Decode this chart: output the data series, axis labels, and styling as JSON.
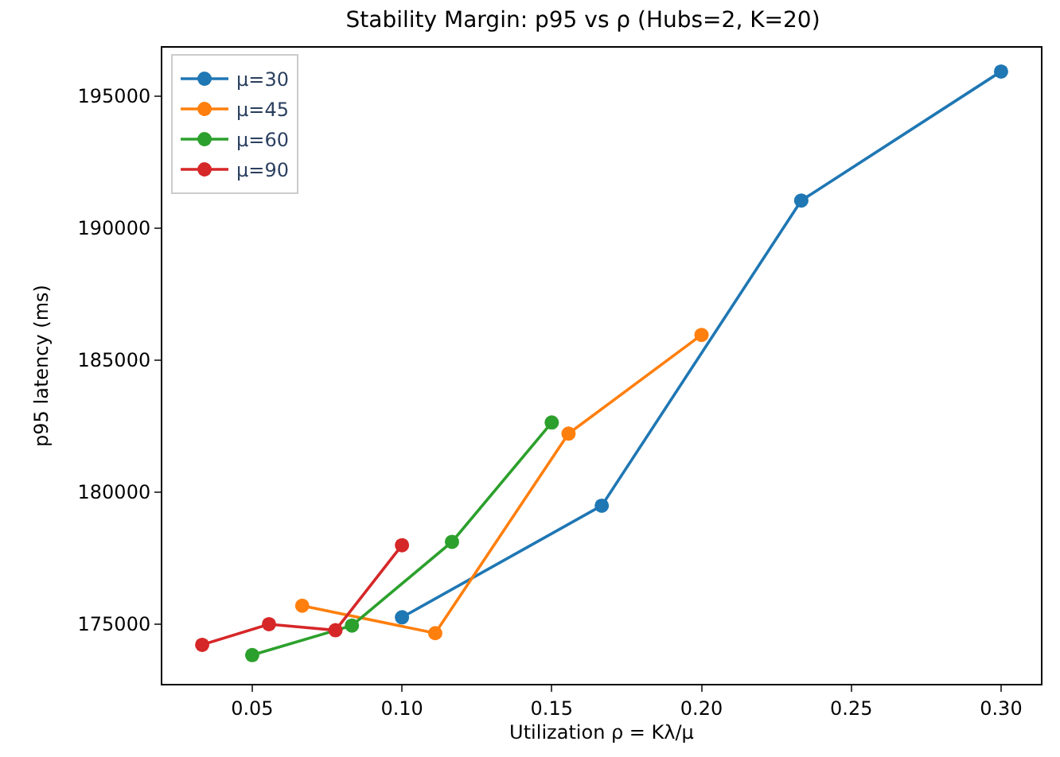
{
  "chart_data": {
    "type": "line",
    "title": "Stability Margin: p95 vs ρ (Hubs=2, K=20)",
    "xlabel": "Utilization ρ = Kλ/μ",
    "ylabel": "p95 latency (ms)",
    "series": [
      {
        "name": "μ=30",
        "color": "#1f77b4",
        "x": [
          0.1,
          0.1667,
          0.2333,
          0.3
        ],
        "values": [
          175260,
          179490,
          191050,
          195940
        ]
      },
      {
        "name": "μ=45",
        "color": "#ff7f0e",
        "x": [
          0.0667,
          0.1111,
          0.1556,
          0.2
        ],
        "values": [
          175700,
          174660,
          182220,
          185960
        ]
      },
      {
        "name": "μ=60",
        "color": "#2ca02c",
        "x": [
          0.05,
          0.0833,
          0.1167,
          0.15
        ],
        "values": [
          173830,
          174950,
          178120,
          182640
        ]
      },
      {
        "name": "μ=90",
        "color": "#d62728",
        "x": [
          0.0333,
          0.0556,
          0.0778,
          0.1
        ],
        "values": [
          174220,
          175000,
          174770,
          177990
        ]
      }
    ],
    "xlim": [
      0.02,
      0.3133
    ],
    "ylim": [
      172740,
      196840
    ],
    "xticks": [
      {
        "value": 0.05,
        "label": "0.05"
      },
      {
        "value": 0.1,
        "label": "0.10"
      },
      {
        "value": 0.15,
        "label": "0.15"
      },
      {
        "value": 0.2,
        "label": "0.20"
      },
      {
        "value": 0.25,
        "label": "0.25"
      },
      {
        "value": 0.3,
        "label": "0.30"
      }
    ],
    "yticks": [
      175000,
      180000,
      185000,
      190000,
      195000
    ],
    "legend": "top left",
    "marker": "circle",
    "line_style": "solid"
  }
}
